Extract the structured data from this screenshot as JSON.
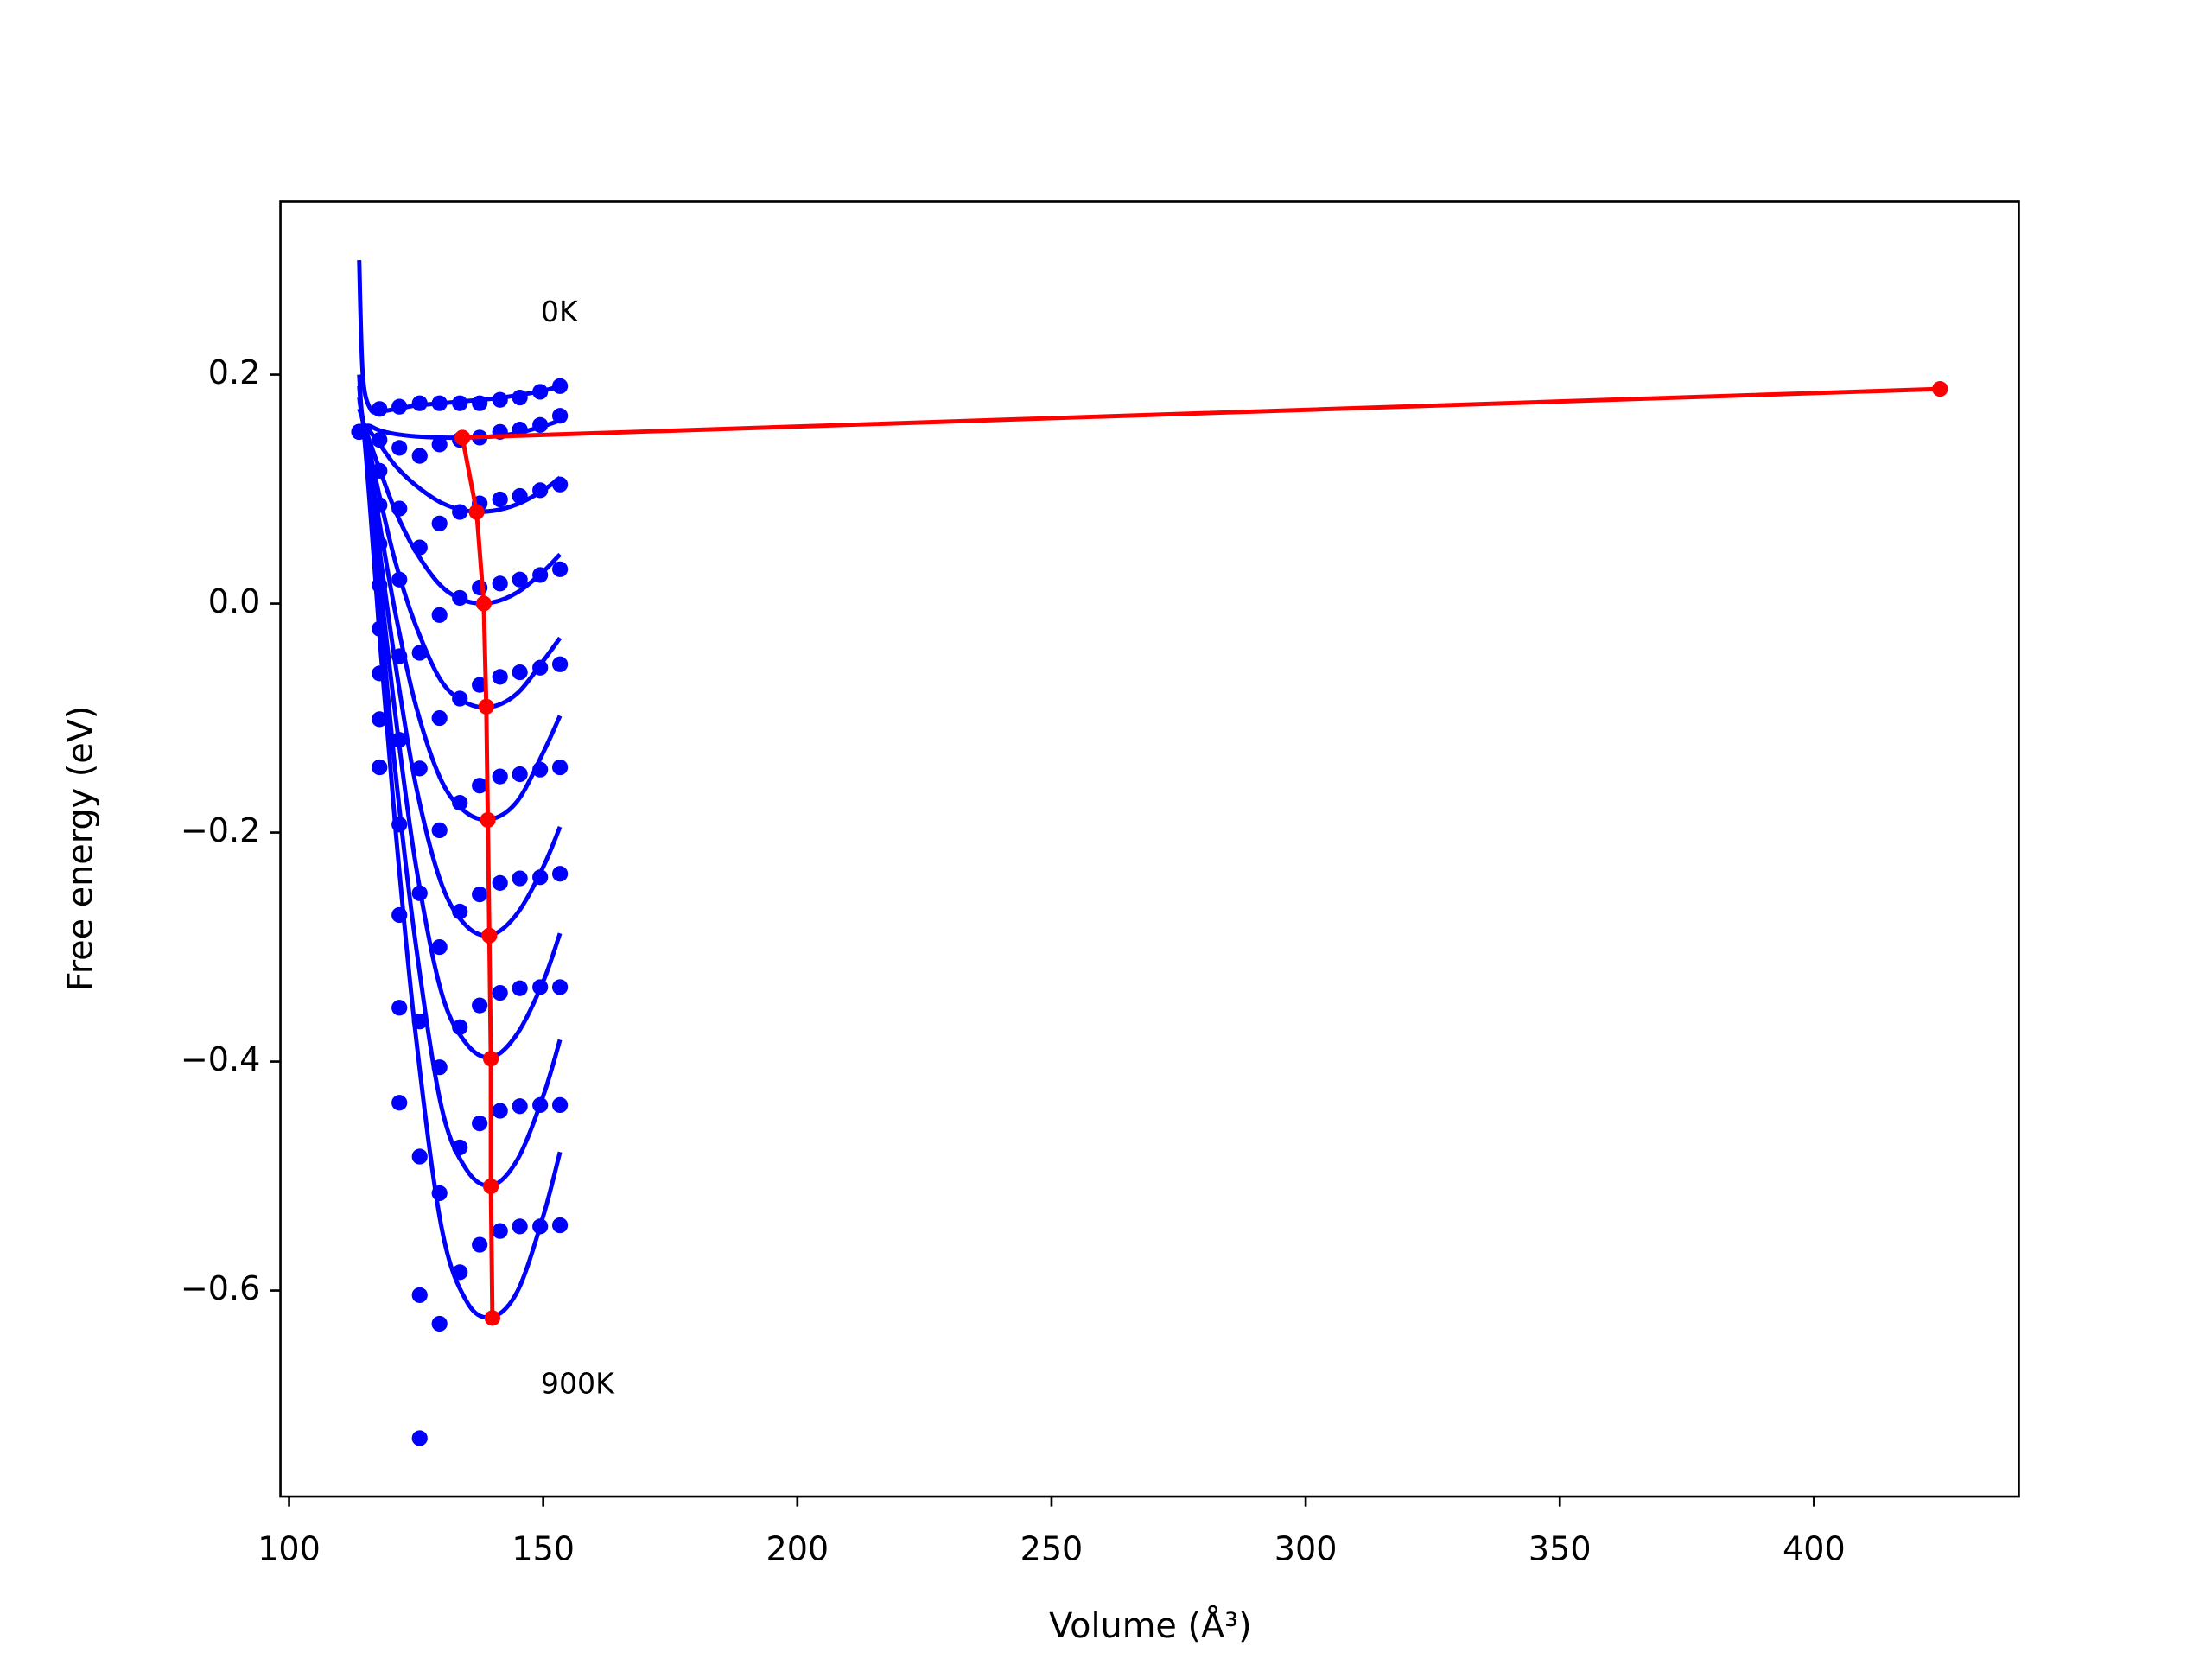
{
  "chart_data": {
    "type": "line",
    "x_label": "Volume (Å³)",
    "y_label": "Free energy (eV)",
    "annotations": [
      "0K",
      "900K"
    ],
    "xlim": [
      98.3,
      440.3
    ],
    "ylim": [
      -0.78,
      0.351
    ],
    "xticks": [
      100,
      150,
      200,
      250,
      300,
      350,
      400
    ],
    "yticks": [
      {
        "value": -0.6,
        "label": "−0.6"
      },
      {
        "value": -0.4,
        "label": "−0.4"
      },
      {
        "value": -0.2,
        "label": "−0.2"
      },
      {
        "value": 0,
        "label": "0.0"
      },
      0.2
    ],
    "grid": false,
    "points_color": "#0000ff",
    "points_x": [
      113.8,
      117.8,
      121.7,
      125.7,
      129.6,
      133.6,
      137.5,
      141.5,
      145.4,
      149.4,
      153.3
    ],
    "points": [
      [
        0.15,
        0.17,
        0.172,
        0.175,
        0.175,
        0.175,
        0.175,
        0.178,
        0.18,
        0.185,
        0.19
      ],
      [
        0.15,
        0.143,
        0.136,
        0.129,
        0.139,
        0.143,
        0.145,
        0.15,
        0.152,
        0.156,
        0.164
      ],
      [
        0.15,
        0.116,
        0.083,
        0.049,
        0.07,
        0.08,
        0.0875,
        0.091,
        0.094,
        0.099,
        0.104
      ],
      [
        0.15,
        0.086,
        0.021,
        -0.043,
        -0.01,
        0.005,
        0.014,
        0.0175,
        0.021,
        0.025,
        0.03
      ],
      [
        0.15,
        0.052,
        -0.046,
        -0.144,
        -0.1,
        -0.083,
        -0.071,
        -0.064,
        -0.06,
        -0.056,
        -0.053
      ],
      [
        0.15,
        0.016,
        -0.119,
        -0.253,
        -0.198,
        -0.174,
        -0.159,
        -0.151,
        -0.149,
        -0.145,
        -0.143
      ],
      [
        0.15,
        -0.022,
        -0.193,
        -0.365,
        -0.3,
        -0.269,
        -0.254,
        -0.244,
        -0.24,
        -0.239,
        -0.236
      ],
      [
        0.15,
        -0.061,
        -0.272,
        -0.483,
        -0.405,
        -0.37,
        -0.351,
        -0.34,
        -0.336,
        -0.335,
        -0.335
      ],
      [
        0.15,
        -0.101,
        -0.353,
        -0.604,
        -0.515,
        -0.475,
        -0.454,
        -0.443,
        -0.439,
        -0.438,
        -0.438
      ],
      [
        0.15,
        -0.143,
        -0.436,
        -0.729,
        -0.629,
        -0.584,
        -0.56,
        -0.548,
        -0.544,
        -0.544,
        -0.543
      ]
    ],
    "fits_color": "#0000ff",
    "fits_x": [
      113.8,
      114.5,
      116,
      118,
      121,
      125,
      130,
      135,
      140,
      145,
      150,
      153.3
    ],
    "fits": [
      [
        0.3,
        0.2,
        0.17,
        0.168,
        0.17,
        0.173,
        0.175,
        0.177,
        0.179,
        0.182,
        0.186,
        0.19
      ],
      [
        0.2,
        0.16,
        0.155,
        0.151,
        0.148,
        0.146,
        0.145,
        0.145,
        0.146,
        0.149,
        0.155,
        0.16
      ],
      [
        0.19,
        0.16,
        0.15,
        0.138,
        0.12,
        0.103,
        0.088,
        0.081,
        0.081,
        0.087,
        0.099,
        0.11
      ],
      [
        0.18,
        0.16,
        0.14,
        0.115,
        0.08,
        0.045,
        0.015,
        0.002,
        0.001,
        0.01,
        0.028,
        0.043
      ],
      [
        0.17,
        0.16,
        0.13,
        0.09,
        0.035,
        -0.02,
        -0.068,
        -0.087,
        -0.09,
        -0.078,
        -0.05,
        -0.03
      ],
      [
        0.17,
        0.16,
        0.12,
        0.065,
        -0.01,
        -0.09,
        -0.155,
        -0.183,
        -0.188,
        -0.172,
        -0.13,
        -0.098
      ],
      [
        0.17,
        0.16,
        0.11,
        0.04,
        -0.055,
        -0.16,
        -0.245,
        -0.282,
        -0.289,
        -0.27,
        -0.23,
        -0.195
      ],
      [
        0.17,
        0.16,
        0.1,
        0.015,
        -0.1,
        -0.23,
        -0.34,
        -0.385,
        -0.396,
        -0.375,
        -0.33,
        -0.288
      ],
      [
        0.17,
        0.16,
        0.09,
        -0.01,
        -0.15,
        -0.3,
        -0.44,
        -0.495,
        -0.508,
        -0.485,
        -0.43,
        -0.381
      ],
      [
        0.17,
        0.16,
        0.08,
        -0.04,
        -0.2,
        -0.38,
        -0.545,
        -0.61,
        -0.623,
        -0.6,
        -0.535,
        -0.479
      ]
    ],
    "equilibrium": {
      "color": "#ff0000",
      "x": [
        424.8,
        134.1,
        136.9,
        138.3,
        138.8,
        139.1,
        139.4,
        139.7,
        139.7,
        140
      ],
      "values": [
        0.1875,
        0.145,
        0.08,
        0.0,
        -0.09,
        -0.189,
        -0.29,
        -0.3975,
        -0.509,
        -0.624
      ]
    }
  }
}
